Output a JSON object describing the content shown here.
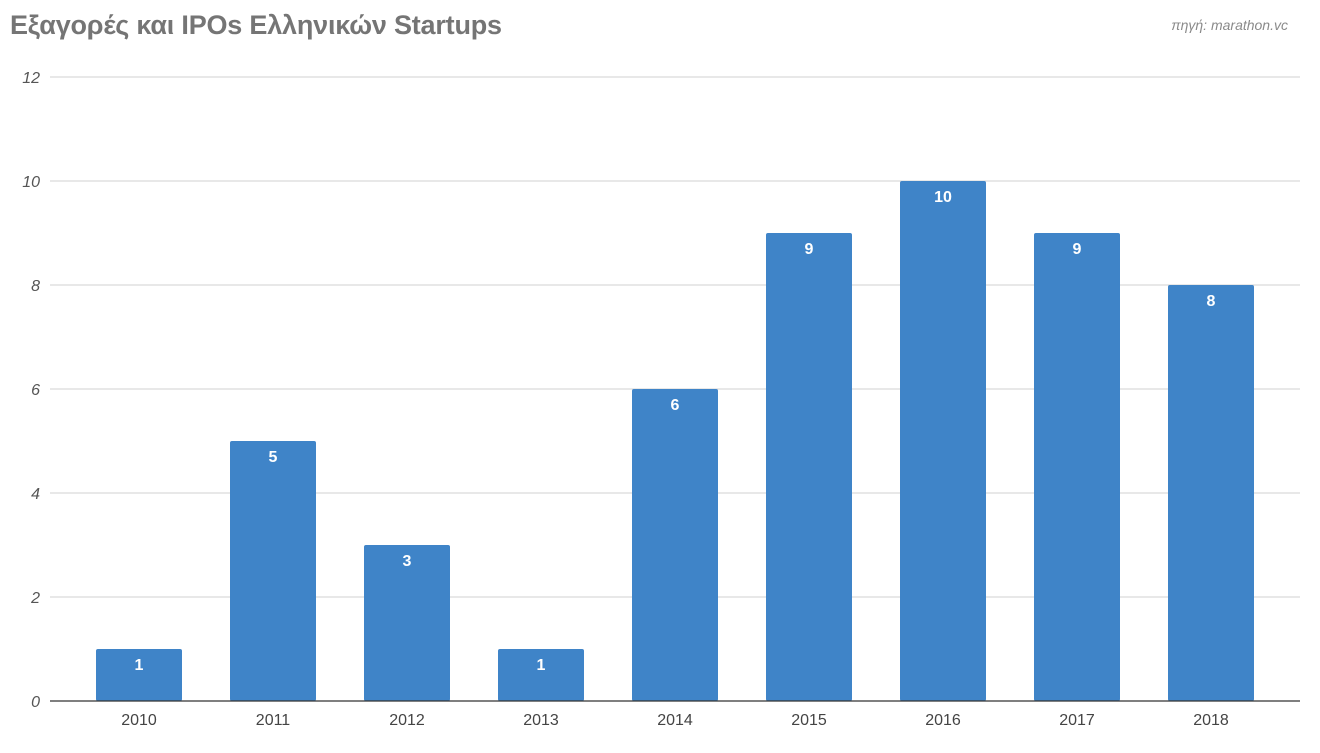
{
  "header": {
    "title": "Εξαγορές και IPOs Ελληνικών Startups",
    "source": "πηγή: marathon.vc"
  },
  "chart_data": {
    "type": "bar",
    "title": "Εξαγορές και IPOs Ελληνικών Startups",
    "categories": [
      "2010",
      "2011",
      "2012",
      "2013",
      "2014",
      "2015",
      "2016",
      "2017",
      "2018"
    ],
    "values": [
      1,
      5,
      3,
      1,
      6,
      9,
      10,
      9,
      8
    ],
    "xlabel": "",
    "ylabel": "",
    "ylim": [
      0,
      12
    ],
    "yticks": [
      0,
      2,
      4,
      6,
      8,
      10,
      12
    ],
    "grid": true,
    "data_labels": true,
    "bar_color": "#3f84c8"
  }
}
